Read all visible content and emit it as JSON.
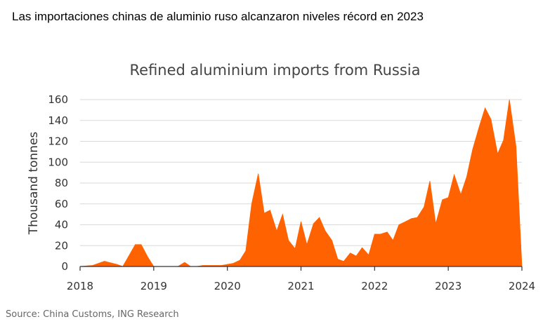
{
  "headline": "Las importaciones chinas de aluminio ruso alcanzaron niveles récord en 2023",
  "source": "Source: China Customs, ING Research",
  "colors": {
    "area": "#ff6200",
    "grid": "#d9d9d9",
    "axis": "#333333"
  },
  "chart_data": {
    "type": "area",
    "title": "Refined aluminium imports from Russia",
    "xlabel": "",
    "ylabel": "Thousand tonnes",
    "ylim": [
      0,
      160
    ],
    "xlim": [
      2018,
      2024
    ],
    "y_ticks": [
      "0",
      "20",
      "40",
      "60",
      "80",
      "100",
      "120",
      "140",
      "160"
    ],
    "x_ticks": [
      "2018",
      "2019",
      "2020",
      "2021",
      "2022",
      "2023",
      "2024"
    ],
    "grid": "horizontal",
    "legend": "none",
    "series": [
      {
        "x": [
          2018.0,
          2018.17,
          2018.33,
          2018.5,
          2018.58,
          2018.67,
          2018.75,
          2018.83,
          2018.92,
          2019.0,
          2019.08,
          2019.17,
          2019.25,
          2019.33,
          2019.42,
          2019.5,
          2019.58,
          2019.67,
          2019.75,
          2019.83,
          2019.92,
          2020.0,
          2020.08,
          2020.17,
          2020.25,
          2020.33,
          2020.42,
          2020.5,
          2020.58,
          2020.67,
          2020.75,
          2020.83,
          2020.92,
          2021.0,
          2021.08,
          2021.17,
          2021.25,
          2021.33,
          2021.42,
          2021.5,
          2021.58,
          2021.67,
          2021.75,
          2021.83,
          2021.92,
          2022.0,
          2022.08,
          2022.17,
          2022.25,
          2022.33,
          2022.42,
          2022.5,
          2022.58,
          2022.67,
          2022.75,
          2022.83,
          2022.92,
          2023.0,
          2023.08,
          2023.17,
          2023.25,
          2023.33,
          2023.42,
          2023.5,
          2023.58,
          2023.67,
          2023.75,
          2023.83,
          2023.92,
          2024.0
        ],
        "values": [
          0,
          1,
          5,
          2,
          0,
          11,
          21,
          21,
          9,
          0,
          0,
          0,
          0,
          0,
          4,
          0,
          0,
          1,
          1,
          1,
          1,
          2,
          3,
          6,
          15,
          60,
          89,
          51,
          54,
          34,
          50,
          25,
          17,
          43,
          21,
          41,
          47,
          34,
          25,
          7,
          5,
          13,
          10,
          18,
          11,
          31,
          31,
          33,
          25,
          40,
          43,
          46,
          47,
          57,
          82,
          41,
          64,
          66,
          88,
          69,
          86,
          112,
          134,
          152,
          141,
          108,
          121,
          160,
          115,
          0
        ]
      }
    ]
  }
}
